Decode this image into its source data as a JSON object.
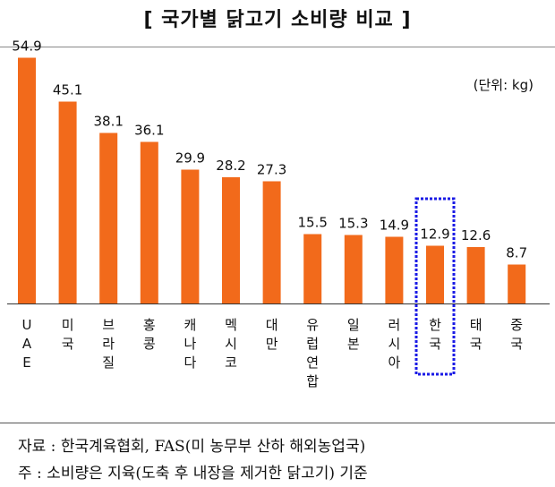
{
  "title": "[ 국가별 닭고기 소비량 비교 ]",
  "unit_label": "(단위: kg)",
  "source_note": "자료 : 한국계육협회, FAS(미 농무부 산하 해외농업국)",
  "footnote": "주 : 소비량은 지육(도축 후 내장을 제거한 닭고기) 기준",
  "colors": {
    "bar": "#F26A1B",
    "highlight_box": "#1A1AE6",
    "text": "#111111"
  },
  "chart_data": {
    "type": "bar",
    "title": "[ 국가별 닭고기 소비량 비교 ]",
    "unit": "(단위: kg)",
    "categories": [
      "UAE",
      "미국",
      "브라질",
      "홍콩",
      "캐나다",
      "멕시코",
      "대만",
      "유럽연합",
      "일본",
      "러시아",
      "한국",
      "태국",
      "중국"
    ],
    "values": [
      54.9,
      45.1,
      38.1,
      36.1,
      29.9,
      28.2,
      27.3,
      15.5,
      15.3,
      14.9,
      12.9,
      12.6,
      8.7
    ],
    "value_labels": [
      "54.9",
      "45.1",
      "38.1",
      "36.1",
      "29.9",
      "28.2",
      "27.3",
      "15.5",
      "15.3",
      "14.9",
      "12.9",
      "12.6",
      "8.7"
    ],
    "highlighted_category": "한국",
    "ylim": [
      0,
      60
    ],
    "grid": false,
    "legend": "none"
  }
}
